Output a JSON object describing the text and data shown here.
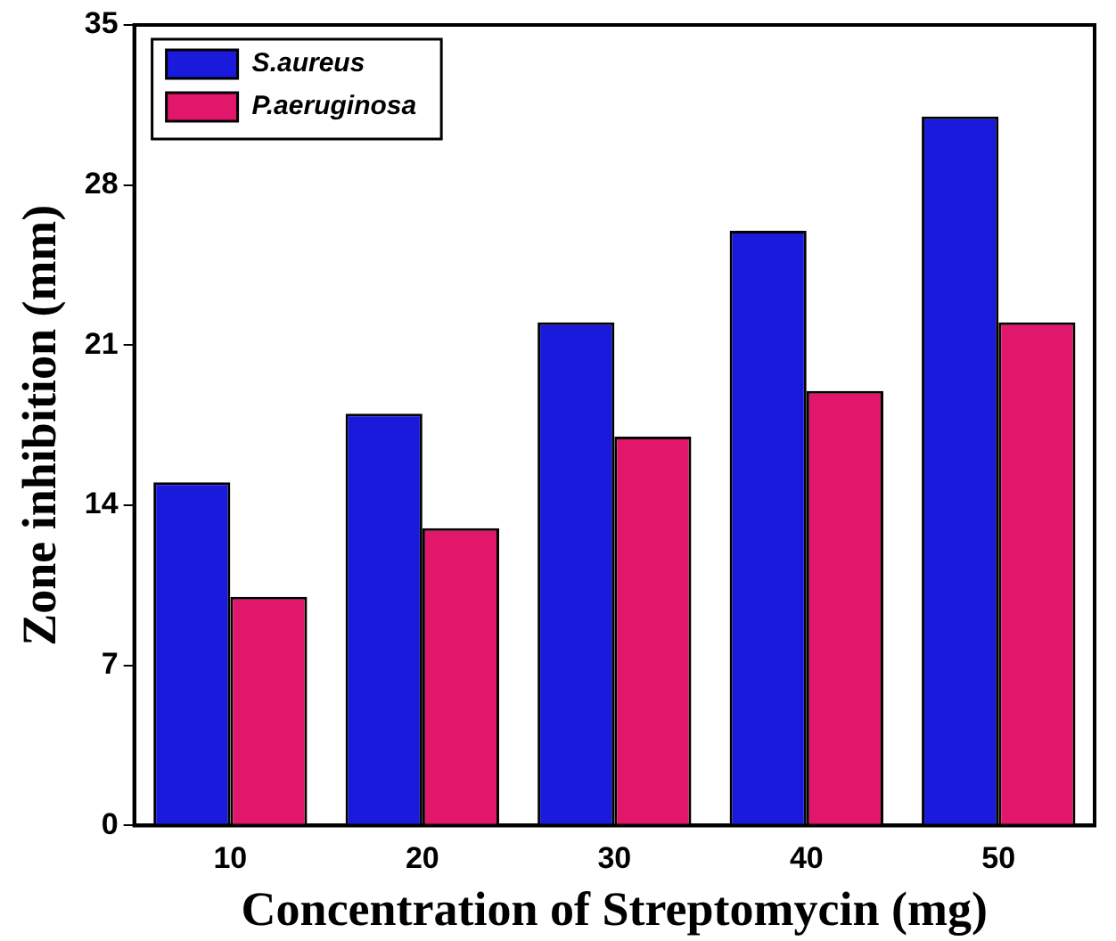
{
  "chart_data": {
    "type": "bar",
    "xlabel": "Concentration of Streptomycin (mg)",
    "ylabel": "Zone inhibition (mm)",
    "categories": [
      "10",
      "20",
      "30",
      "40",
      "50"
    ],
    "series": [
      {
        "name": "S.aureus",
        "color": "#1a1adc",
        "values": [
          15,
          18,
          22,
          26,
          31
        ]
      },
      {
        "name": "P.aeruginosa",
        "color": "#e0176a",
        "values": [
          10,
          13,
          17,
          19,
          22
        ]
      }
    ],
    "ylim": [
      0,
      35
    ],
    "yticks": [
      0,
      7,
      14,
      21,
      28,
      35
    ],
    "grid": false,
    "legend": "top left"
  }
}
